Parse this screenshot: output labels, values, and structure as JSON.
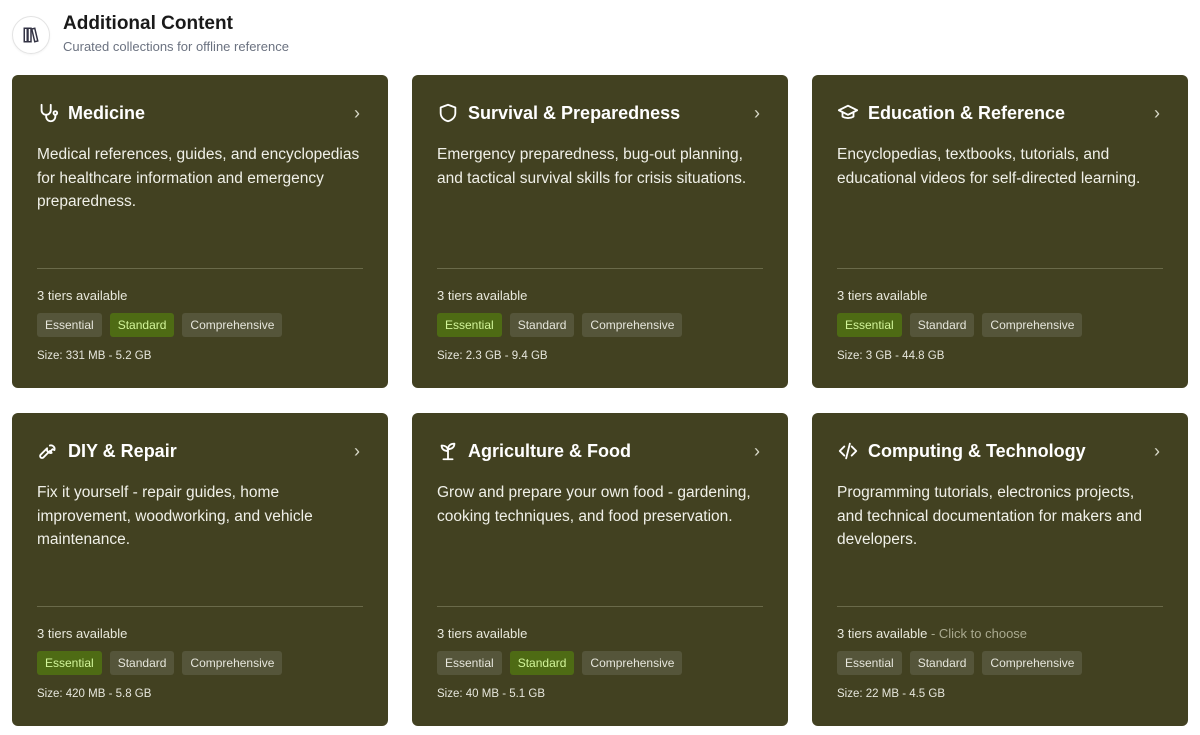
{
  "header": {
    "title": "Additional Content",
    "subtitle": "Curated collections for offline reference",
    "icon": "library-icon"
  },
  "cards": [
    {
      "title": "Medicine",
      "icon": "stethoscope-icon",
      "description": "Medical references, guides, and encyclopedias for healthcare information and emergency preparedness.",
      "tiers": "3 tiers available",
      "hint": "",
      "chips": [
        "Essential",
        "Standard",
        "Comprehensive"
      ],
      "selected": 1,
      "size": "Size: 331 MB - 5.2 GB"
    },
    {
      "title": "Survival & Preparedness",
      "icon": "shield-icon",
      "description": "Emergency preparedness, bug-out planning, and tactical survival skills for crisis situations.",
      "tiers": "3 tiers available",
      "hint": "",
      "chips": [
        "Essential",
        "Standard",
        "Comprehensive"
      ],
      "selected": 0,
      "size": "Size: 2.3 GB - 9.4 GB"
    },
    {
      "title": "Education & Reference",
      "icon": "graduation-cap-icon",
      "description": "Encyclopedias, textbooks, tutorials, and educational videos for self-directed learning.",
      "tiers": "3 tiers available",
      "hint": "",
      "chips": [
        "Essential",
        "Standard",
        "Comprehensive"
      ],
      "selected": 0,
      "size": "Size: 3 GB - 44.8 GB"
    },
    {
      "title": "DIY & Repair",
      "icon": "wrench-icon",
      "description": "Fix it yourself - repair guides, home improvement, woodworking, and vehicle maintenance.",
      "tiers": "3 tiers available",
      "hint": "",
      "chips": [
        "Essential",
        "Standard",
        "Comprehensive"
      ],
      "selected": 0,
      "size": "Size: 420 MB - 5.8 GB"
    },
    {
      "title": "Agriculture & Food",
      "icon": "sprout-icon",
      "description": "Grow and prepare your own food - gardening, cooking techniques, and food preservation.",
      "tiers": "3 tiers available",
      "hint": "",
      "chips": [
        "Essential",
        "Standard",
        "Comprehensive"
      ],
      "selected": 1,
      "size": "Size: 40 MB - 5.1 GB"
    },
    {
      "title": "Computing & Technology",
      "icon": "code-icon",
      "description": "Programming tutorials, electronics projects, and technical documentation for makers and developers.",
      "tiers": "3 tiers available",
      "hint": " - Click to choose",
      "chips": [
        "Essential",
        "Standard",
        "Comprehensive"
      ],
      "selected": -1,
      "size": "Size: 22 MB - 4.5 GB"
    }
  ],
  "colors": {
    "card": "#424121",
    "selected_chip": "#4e6b14",
    "selected_text": "#d2f59a"
  }
}
